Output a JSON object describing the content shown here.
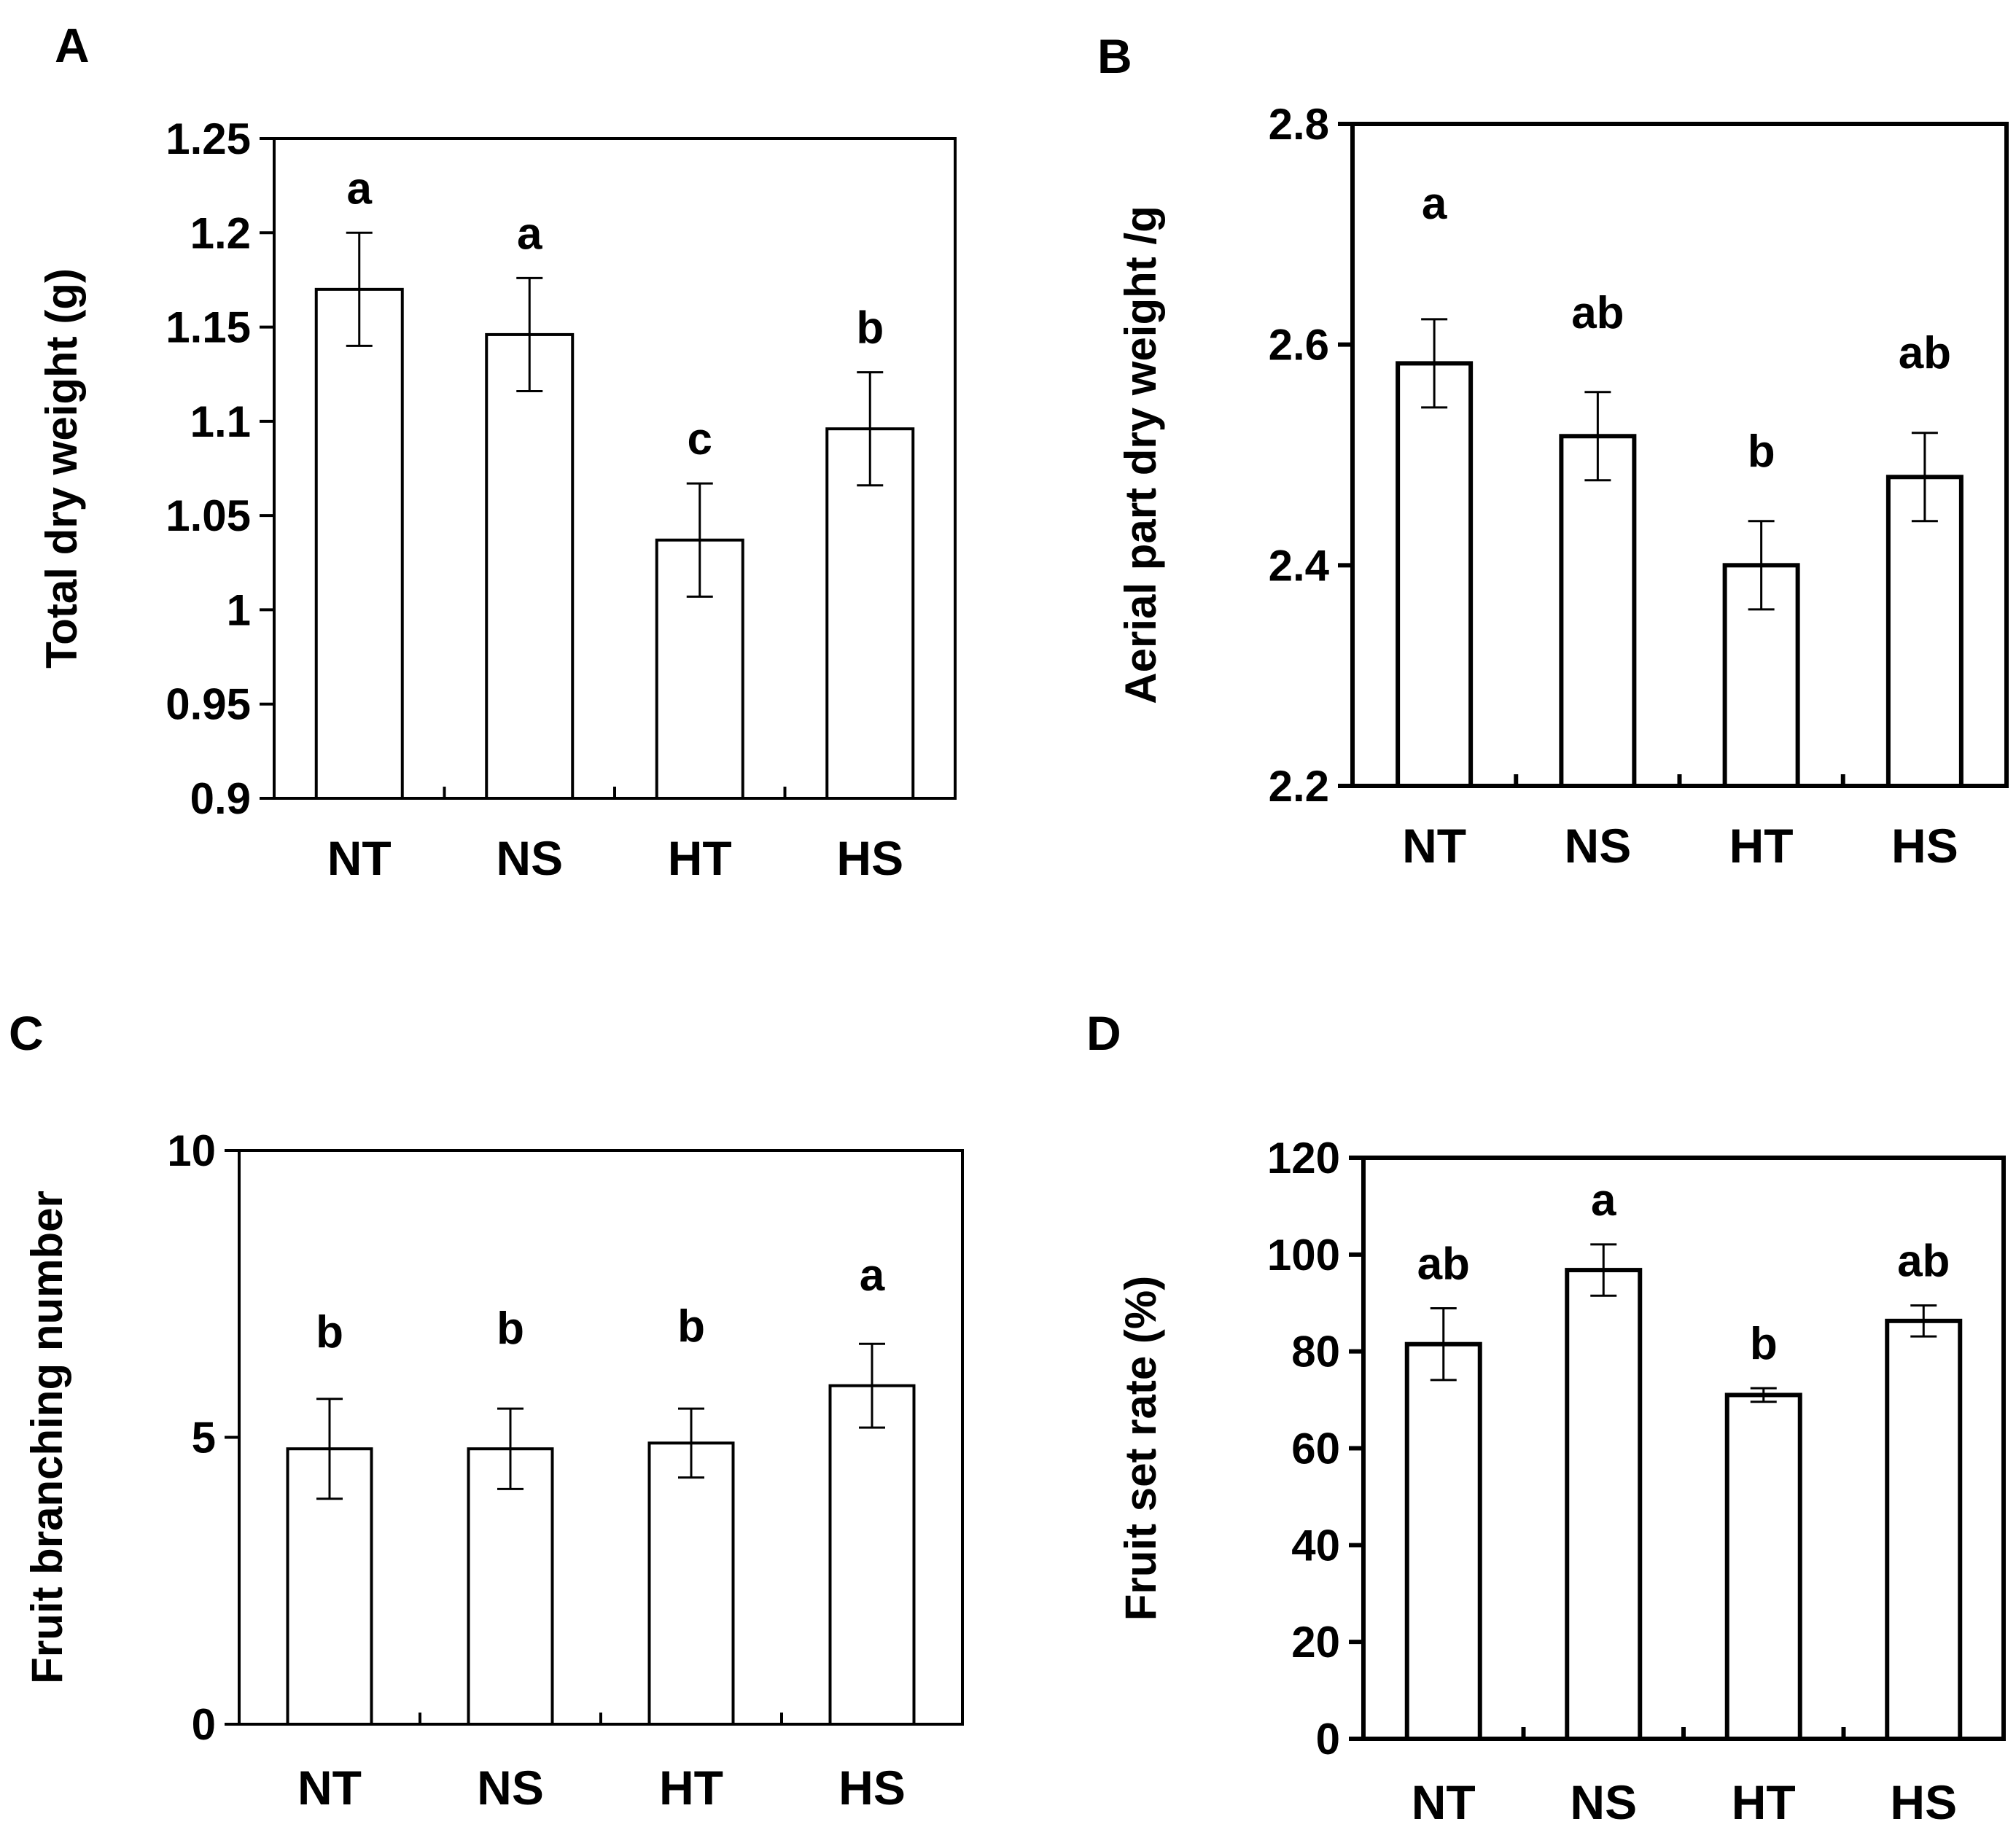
{
  "chart_data": [
    {
      "panel": "A",
      "type": "bar",
      "title": "",
      "xlabel": "",
      "ylabel": "Total dry weight (g)",
      "categories": [
        "NT",
        "NS",
        "HT",
        "HS"
      ],
      "values": [
        1.17,
        1.146,
        1.037,
        1.096
      ],
      "errors": [
        0.03,
        0.03,
        0.03,
        0.03
      ],
      "letters": [
        "a",
        "a",
        "c",
        "b"
      ],
      "ylim": [
        0.9,
        1.25
      ],
      "ticks": [
        "0.9",
        "0.95",
        "1",
        "1.05",
        "1.1",
        "1.15",
        "1.2",
        "1.25"
      ]
    },
    {
      "panel": "B",
      "type": "bar",
      "title": "",
      "xlabel": "",
      "ylabel": "Aerial part dry weight /g",
      "categories": [
        "NT",
        "NS",
        "HT",
        "HS"
      ],
      "values": [
        2.583,
        2.517,
        2.4,
        2.48
      ],
      "errors": [
        0.04,
        0.04,
        0.04,
        0.04
      ],
      "letters": [
        "a",
        "ab",
        "b",
        "ab"
      ],
      "ylim": [
        2.2,
        2.8
      ],
      "ticks": [
        "2.2",
        "2.4",
        "2.6",
        "2.8"
      ]
    },
    {
      "panel": "C",
      "type": "bar",
      "title": "",
      "xlabel": "",
      "ylabel": "Fruit branching number",
      "categories": [
        "NT",
        "NS",
        "HT",
        "HS"
      ],
      "values": [
        4.8,
        4.8,
        4.9,
        5.9
      ],
      "errors": [
        0.87,
        0.7,
        0.6,
        0.73
      ],
      "letters": [
        "b",
        "b",
        "b",
        "a"
      ],
      "ylim": [
        0,
        10
      ],
      "ticks": [
        "0",
        "5",
        "10"
      ]
    },
    {
      "panel": "D",
      "type": "bar",
      "title": "",
      "xlabel": "",
      "ylabel": "Fruit set rate (%)",
      "categories": [
        "NT",
        "NS",
        "HT",
        "HS"
      ],
      "values": [
        81.5,
        96.8,
        71,
        86.3
      ],
      "errors": [
        7.4,
        5.3,
        1.4,
        3.2
      ],
      "letters": [
        "ab",
        "a",
        "b",
        "ab"
      ],
      "ylim": [
        0,
        120
      ],
      "ticks": [
        "0",
        "20",
        "40",
        "60",
        "80",
        "100",
        "120"
      ]
    }
  ]
}
